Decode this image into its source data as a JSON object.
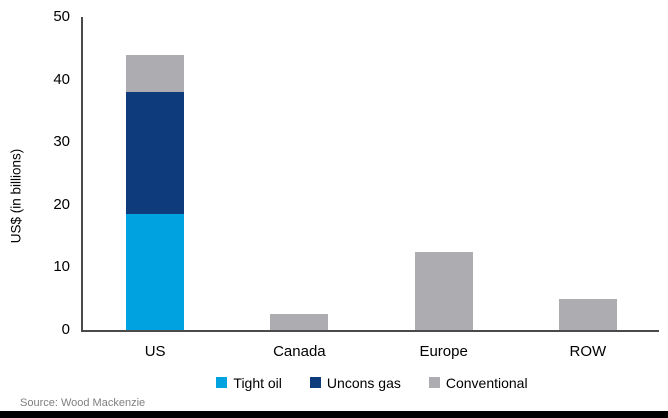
{
  "chart_data": {
    "type": "bar",
    "stacked": true,
    "title": "",
    "xlabel": "",
    "ylabel": "US$ (in billions)",
    "categories": [
      "US",
      "Canada",
      "Europe",
      "ROW"
    ],
    "series": [
      {
        "name": "Tight oil",
        "color": "#00A2E0",
        "values": [
          18.5,
          0,
          0,
          0
        ]
      },
      {
        "name": "Uncons gas",
        "color": "#0D3B7C",
        "values": [
          19.5,
          0,
          0,
          0
        ]
      },
      {
        "name": "Conventional",
        "color": "#ADADB1",
        "values": [
          6,
          2.5,
          12.5,
          5
        ]
      }
    ],
    "ylim": [
      0,
      50
    ],
    "yticks": [
      0,
      10,
      20,
      30,
      40,
      50
    ],
    "grid": false,
    "legend_position": "bottom"
  },
  "source": {
    "label": "Source: Wood Mackenzie"
  },
  "colors": {
    "axis": "#4a4a4a",
    "source_text": "#7f7f7f",
    "footer_bar": "#000000",
    "background": "#ffffff"
  }
}
